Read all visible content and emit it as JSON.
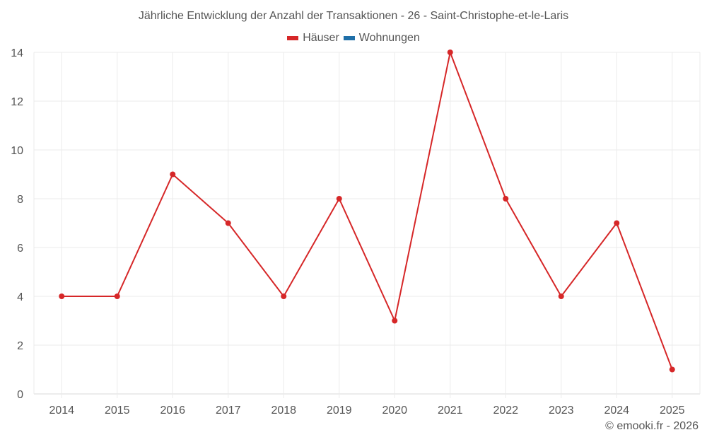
{
  "chart_data": {
    "type": "line",
    "title": "Jährliche Entwicklung der Anzahl der Transaktionen - 26 - Saint-Christophe-et-le-Laris",
    "categories": [
      "2014",
      "2015",
      "2016",
      "2017",
      "2018",
      "2019",
      "2020",
      "2021",
      "2022",
      "2023",
      "2024",
      "2025"
    ],
    "series": [
      {
        "name": "Häuser",
        "color": "#d62728",
        "values": [
          4,
          4,
          9,
          7,
          4,
          8,
          3,
          14,
          8,
          4,
          7,
          1
        ]
      },
      {
        "name": "Wohnungen",
        "color": "#1f6fa8",
        "values": []
      }
    ],
    "xlabel": "",
    "ylabel": "",
    "ylim": [
      0,
      14
    ],
    "yticks": [
      0,
      2,
      4,
      6,
      8,
      10,
      12,
      14
    ],
    "grid": true,
    "legend_position": "top"
  },
  "header": {
    "title": "Jährliche Entwicklung der Anzahl der Transaktionen - 26 - Saint-Christophe-et-le-Laris"
  },
  "legend": {
    "items": [
      {
        "label": "Häuser",
        "color": "#d62728"
      },
      {
        "label": "Wohnungen",
        "color": "#1f6fa8"
      }
    ]
  },
  "footer": {
    "credit": "© emooki.fr - 2026"
  }
}
